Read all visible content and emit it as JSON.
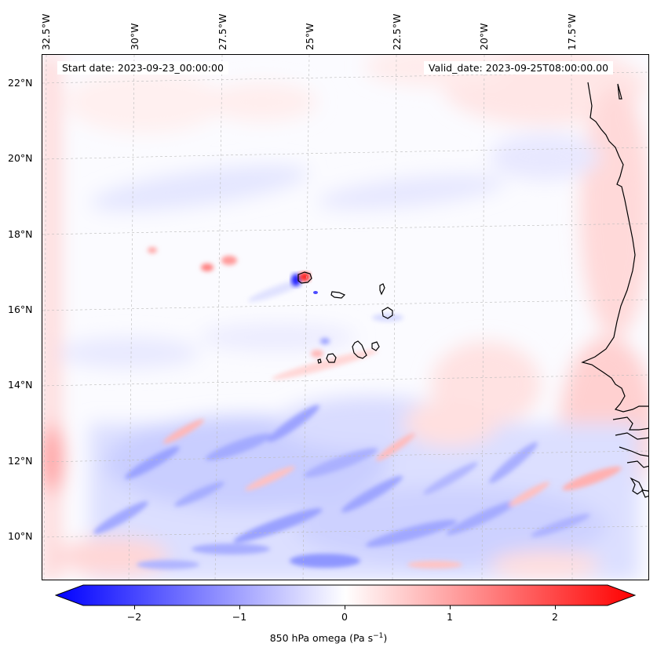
{
  "map": {
    "start_date": "Start date: 2023-09-23_00:00:00",
    "valid_date": "Valid_date: 2023-09-25T08:00:00.00",
    "lon_labels": [
      "32.5°W",
      "30°W",
      "27.5°W",
      "25°W",
      "22.5°W",
      "20°W",
      "17.5°W"
    ],
    "lat_labels": [
      "22°N",
      "20°N",
      "18°N",
      "16°N",
      "14°N",
      "12°N",
      "10°N"
    ],
    "colorbar": {
      "ticks": [
        "−2",
        "−1",
        "0",
        "1",
        "2"
      ],
      "label": "850 hPa omega (Pa s",
      "label_sup": "−1",
      "label_end": ")",
      "colormap": "bwr",
      "min_color": "#0000ff",
      "mid_color": "#ffffff",
      "max_color": "#ff0000"
    }
  }
}
